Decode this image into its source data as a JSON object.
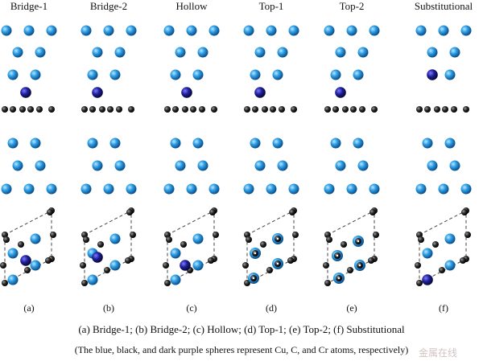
{
  "figure": {
    "panels": [
      {
        "title": "Bridge-1",
        "letter": "(a)"
      },
      {
        "title": "Bridge-2",
        "letter": "(b)"
      },
      {
        "title": "Hollow",
        "letter": "(c)"
      },
      {
        "title": "Top-1",
        "letter": "(d)"
      },
      {
        "title": "Top-2",
        "letter": "(e)"
      },
      {
        "title": "Substitutional",
        "letter": "(f)"
      }
    ],
    "caption_line1": "(a) Bridge-1; (b) Bridge-2; (c) Hollow; (d) Top-1; (e) Top-2; (f) Substitutional",
    "caption_line2": "(The blue, black, and dark purple spheres represent Cu, C, and Cr atoms, respectively)",
    "watermark": "金属在线"
  },
  "colors": {
    "cu": "#2a9be0",
    "c": "#1a1a1a",
    "cr": "#1e1e9a"
  }
}
